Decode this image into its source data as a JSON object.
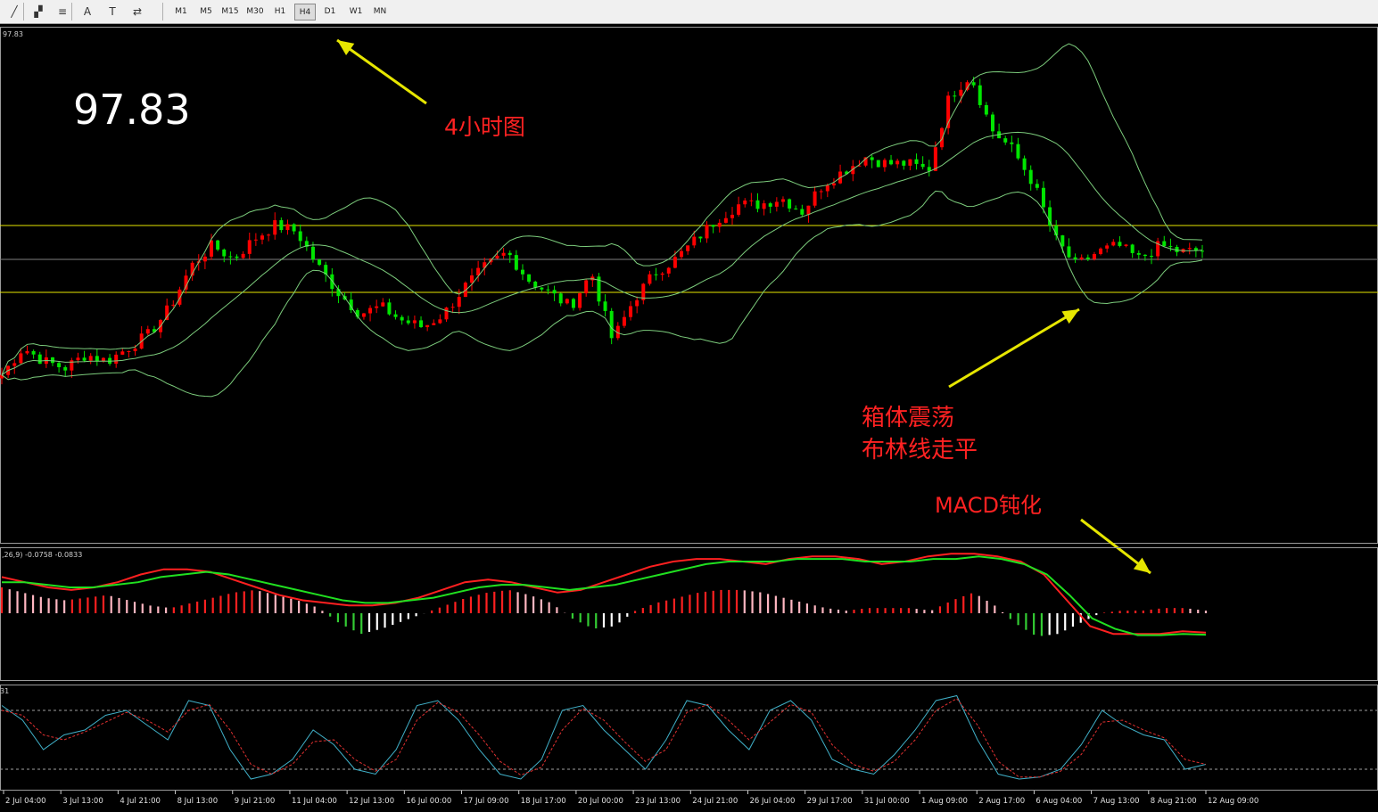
{
  "toolbar": {
    "tools": [
      {
        "icon": "line-tool-icon",
        "glyph": "╱"
      },
      {
        "icon": "fibonacci-fan-icon",
        "glyph": "▞"
      },
      {
        "icon": "fibonacci-levels-icon",
        "glyph": "≡"
      },
      {
        "icon": "text-tool-icon",
        "glyph": "A"
      },
      {
        "icon": "text-label-tool-icon",
        "glyph": "T"
      },
      {
        "icon": "arrows-tool-icon",
        "glyph": "⇄"
      }
    ],
    "timeframes": [
      "M1",
      "M5",
      "M15",
      "M30",
      "H1",
      "H4",
      "D1",
      "W1",
      "MN"
    ],
    "active_timeframe": "H4"
  },
  "chart_data": [
    {
      "type": "candlestick",
      "panel": "price",
      "corner_price_label": "97.83",
      "big_price_label": "97.83",
      "overlays": [
        "Bollinger Bands"
      ],
      "horizontal_levels": [
        {
          "color": "#e6e600"
        },
        {
          "color": "#808080"
        },
        {
          "color": "#e6e600"
        }
      ],
      "close_path": [
        96.0,
        96.4,
        96.2,
        96.1,
        96.3,
        96.2,
        96.4,
        96.6,
        97.0,
        97.6,
        97.9,
        97.7,
        98.0,
        98.2,
        98.1,
        97.6,
        97.2,
        96.9,
        97.0,
        96.8,
        96.7,
        96.9,
        97.3,
        97.6,
        97.8,
        97.4,
        97.2,
        97.0,
        97.5,
        96.5,
        97.1,
        97.5,
        97.7,
        98.0,
        98.3,
        98.5,
        98.5,
        98.6,
        98.4,
        98.8,
        99.0,
        99.2,
        99.1,
        99.1,
        99.0,
        100.1,
        100.4,
        99.6,
        99.3,
        98.8,
        98.0,
        97.6,
        97.8,
        97.9,
        97.7,
        97.9,
        97.8,
        97.83
      ],
      "colors": {
        "up": "#ff0000",
        "down": "#00e600",
        "bands": "#7ccc7c"
      },
      "annotations": [
        {
          "text": "4小时图",
          "color": "#ff2222"
        },
        {
          "text": "箱体震荡",
          "color": "#ff2222"
        },
        {
          "text": "布林线走平",
          "color": "#ff2222"
        },
        {
          "text": "MACD钝化",
          "color": "#ff2222"
        }
      ],
      "arrow_color": "#e6e600"
    },
    {
      "type": "bar",
      "panel": "macd",
      "label": ",26,9) -0.0758 -0.0833",
      "series": [
        {
          "values": [
            0.1,
            0.08,
            0.06,
            0.05,
            0.06,
            0.07,
            0.05,
            0.03,
            0.02,
            0.04,
            0.06,
            0.08,
            0.09,
            0.07,
            0.05,
            0.02,
            -0.04,
            -0.08,
            -0.06,
            -0.03,
            0.0,
            0.03,
            0.06,
            0.08,
            0.09,
            0.07,
            0.04,
            -0.02,
            -0.06,
            -0.05,
            0.01,
            0.04,
            0.06,
            0.08,
            0.09,
            0.09,
            0.08,
            0.06,
            0.04,
            0.02,
            0.01,
            0.02,
            0.02,
            0.02,
            0.01,
            0.05,
            0.08,
            0.03,
            -0.04,
            -0.09,
            -0.08,
            -0.04,
            0.0,
            0.01,
            0.01,
            0.02,
            0.02,
            0.01
          ]
        },
        {
          "color": "#ff2020",
          "values": [
            0.14,
            0.12,
            0.1,
            0.09,
            0.1,
            0.12,
            0.15,
            0.17,
            0.17,
            0.16,
            0.13,
            0.1,
            0.07,
            0.05,
            0.04,
            0.03,
            0.03,
            0.04,
            0.06,
            0.09,
            0.12,
            0.13,
            0.12,
            0.1,
            0.08,
            0.09,
            0.12,
            0.15,
            0.18,
            0.2,
            0.21,
            0.21,
            0.2,
            0.19,
            0.21,
            0.22,
            0.22,
            0.21,
            0.19,
            0.2,
            0.22,
            0.23,
            0.23,
            0.22,
            0.2,
            0.15,
            0.05,
            -0.05,
            -0.08,
            -0.08,
            -0.08,
            -0.07,
            -0.075
          ]
        },
        {
          "color": "#20e020",
          "values": [
            0.12,
            0.12,
            0.11,
            0.1,
            0.1,
            0.11,
            0.12,
            0.14,
            0.15,
            0.16,
            0.15,
            0.13,
            0.11,
            0.09,
            0.07,
            0.05,
            0.04,
            0.04,
            0.05,
            0.06,
            0.08,
            0.1,
            0.11,
            0.11,
            0.1,
            0.09,
            0.1,
            0.11,
            0.13,
            0.15,
            0.17,
            0.19,
            0.2,
            0.2,
            0.2,
            0.21,
            0.21,
            0.21,
            0.2,
            0.2,
            0.2,
            0.21,
            0.21,
            0.22,
            0.21,
            0.19,
            0.15,
            0.07,
            -0.02,
            -0.06,
            -0.085,
            -0.085,
            -0.08,
            -0.083
          ]
        }
      ]
    },
    {
      "type": "line",
      "panel": "stochastic",
      "label": "31",
      "levels": [
        80,
        20
      ],
      "series": [
        {
          "color": "#40b0c8",
          "values": [
            85,
            70,
            40,
            55,
            60,
            75,
            80,
            65,
            50,
            90,
            85,
            40,
            10,
            15,
            30,
            60,
            45,
            20,
            15,
            40,
            85,
            90,
            70,
            40,
            15,
            10,
            30,
            80,
            85,
            60,
            40,
            20,
            50,
            90,
            85,
            60,
            40,
            80,
            90,
            70,
            30,
            20,
            15,
            35,
            60,
            90,
            95,
            50,
            15,
            10,
            12,
            20,
            45,
            80,
            65,
            55,
            50,
            20,
            25
          ]
        },
        {
          "color": "#e03030",
          "values": [
            80,
            75,
            55,
            50,
            58,
            68,
            78,
            70,
            58,
            80,
            86,
            60,
            25,
            15,
            25,
            48,
            50,
            30,
            18,
            30,
            70,
            88,
            78,
            55,
            28,
            14,
            22,
            60,
            82,
            70,
            48,
            28,
            40,
            78,
            86,
            70,
            50,
            68,
            86,
            78,
            45,
            25,
            18,
            28,
            50,
            80,
            92,
            65,
            28,
            12,
            12,
            18,
            35,
            68,
            70,
            60,
            52,
            30,
            25
          ]
        }
      ]
    }
  ],
  "time_axis": [
    "2 Jul 04:00",
    "3 Jul 13:00",
    "4 Jul 21:00",
    "8 Jul 13:00",
    "9 Jul 21:00",
    "11 Jul 04:00",
    "12 Jul 13:00",
    "16 Jul 00:00",
    "17 Jul 09:00",
    "18 Jul 17:00",
    "20 Jul 00:00",
    "23 Jul 13:00",
    "24 Jul 21:00",
    "26 Jul 04:00",
    "29 Jul 17:00",
    "31 Jul 00:00",
    "1 Aug 09:00",
    "2 Aug 17:00",
    "6 Aug 04:00",
    "7 Aug 13:00",
    "8 Aug 21:00",
    "12 Aug 09:00"
  ]
}
